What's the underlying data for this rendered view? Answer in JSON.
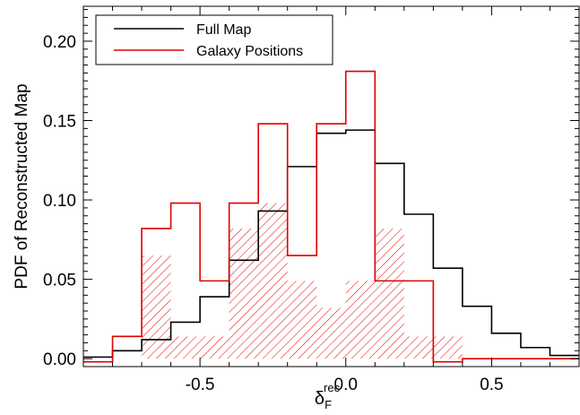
{
  "chart_data": {
    "type": "histogram",
    "xlabel": {
      "base": "δ",
      "sub": "F",
      "sup": "rec"
    },
    "ylabel": "PDF of Reconstructed Map",
    "xlim": [
      -0.9,
      0.8
    ],
    "ylim": [
      -0.005,
      0.222
    ],
    "xticks": [
      -0.5,
      0.0,
      0.5
    ],
    "xtick_labels": [
      "-0.5",
      "0.0",
      "0.5"
    ],
    "yticks": [
      0.0,
      0.05,
      0.1,
      0.15,
      0.2
    ],
    "ytick_labels": [
      "0.00",
      "0.05",
      "0.10",
      "0.15",
      "0.20"
    ],
    "bin_edges": [
      -0.9,
      -0.8,
      -0.7,
      -0.6,
      -0.5,
      -0.4,
      -0.3,
      -0.2,
      -0.1,
      0.0,
      0.1,
      0.2,
      0.3,
      0.4,
      0.5,
      0.6,
      0.7,
      0.8
    ],
    "grid": false,
    "legend_position": "top-left",
    "series": [
      {
        "name": "Full Map",
        "color": "#000000",
        "style": "step",
        "values": [
          0.001,
          0.005,
          0.012,
          0.023,
          0.039,
          0.062,
          0.093,
          0.121,
          0.142,
          0.144,
          0.123,
          0.091,
          0.057,
          0.033,
          0.016,
          0.007,
          0.002
        ]
      },
      {
        "name": "Galaxy Positions",
        "color": "#e00000",
        "style": "step",
        "values": [
          -0.002,
          0.014,
          0.082,
          0.098,
          0.049,
          0.098,
          0.148,
          0.065,
          0.148,
          0.181,
          0.049,
          0.049,
          -0.002,
          0.0,
          0.0,
          0.0,
          0.0
        ]
      },
      {
        "name": "",
        "color": "#e00000",
        "style": "hatched",
        "values": [
          0.0,
          0.0,
          0.065,
          0.014,
          0.014,
          0.082,
          0.098,
          0.049,
          0.032,
          0.049,
          0.082,
          0.014,
          0.014,
          0.0,
          0.0,
          0.0,
          0.0
        ]
      }
    ]
  }
}
